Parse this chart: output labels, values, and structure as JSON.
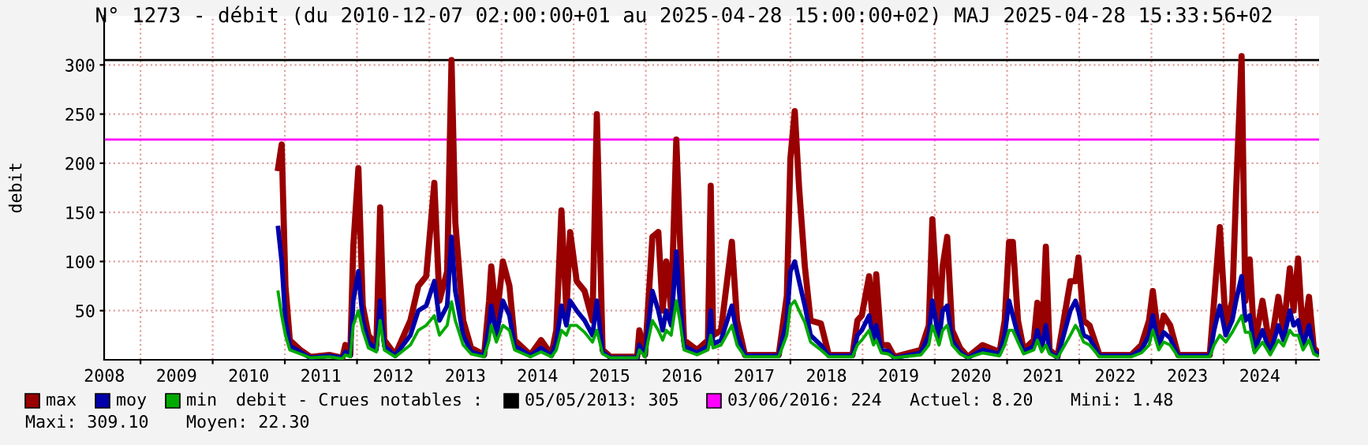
{
  "chart_data": {
    "type": "line",
    "title": "N° 1273 - débit (du 2010-12-07 02:00:00+01 au 2025-04-28 15:00:00+02) MAJ 2025-04-28 15:33:56+02",
    "ylabel": "debit",
    "x": [
      "2010-11-28",
      "2010-12-16",
      "2011-01-04",
      "2011-01-26",
      "2011-03-20",
      "2011-05-10",
      "2011-08-14",
      "2011-10-19",
      "2011-11-03",
      "2011-11-28",
      "2011-12-13",
      "2012-01-08",
      "2012-01-30",
      "2012-02-28",
      "2012-04-08",
      "2012-04-27",
      "2012-05-18",
      "2012-07-12",
      "2012-09-27",
      "2012-11-06",
      "2012-12-16",
      "2013-01-26",
      "2013-02-21",
      "2013-04-01",
      "2013-04-23",
      "2013-05-12",
      "2013-06-21",
      "2013-07-31",
      "2013-10-05",
      "2013-10-30",
      "2013-11-10",
      "2013-12-06",
      "2014-01-08",
      "2014-02-10",
      "2014-03-08",
      "2014-05-27",
      "2014-07-20",
      "2014-09-10",
      "2014-10-05",
      "2014-10-31",
      "2014-11-25",
      "2014-12-14",
      "2015-01-16",
      "2015-02-25",
      "2015-04-06",
      "2015-04-28",
      "2015-05-27",
      "2015-07-06",
      "2015-08-05",
      "2015-11-18",
      "2015-11-29",
      "2015-12-28",
      "2016-01-08",
      "2016-02-03",
      "2016-03-04",
      "2016-03-26",
      "2016-04-13",
      "2016-05-08",
      "2016-06-03",
      "2016-06-21",
      "2016-07-12",
      "2016-09-16",
      "2016-11-10",
      "2016-11-24",
      "2016-12-06",
      "2017-01-15",
      "2017-03-11",
      "2017-04-06",
      "2017-05-16",
      "2017-11-03",
      "2017-12-14",
      "2018-01-01",
      "2018-01-23",
      "2018-02-14",
      "2018-03-15",
      "2018-04-13",
      "2018-06-04",
      "2018-07-14",
      "2018-11-11",
      "2018-12-06",
      "2018-12-28",
      "2019-02-03",
      "2019-02-25",
      "2019-03-11",
      "2019-04-06",
      "2019-05-09",
      "2019-06-11",
      "2019-10-23",
      "2019-12-02",
      "2019-12-20",
      "2020-01-23",
      "2020-02-10",
      "2020-03-04",
      "2020-03-29",
      "2020-05-08",
      "2020-06-17",
      "2020-08-30",
      "2020-11-24",
      "2020-12-20",
      "2021-01-11",
      "2021-01-30",
      "2021-02-25",
      "2021-03-26",
      "2021-05-16",
      "2021-06-03",
      "2021-06-25",
      "2021-07-16",
      "2021-08-04",
      "2021-09-13",
      "2021-11-17",
      "2021-12-13",
      "2021-12-28",
      "2022-01-23",
      "2022-02-22",
      "2022-04-13",
      "2022-09-21",
      "2022-11-11",
      "2022-12-20",
      "2023-01-08",
      "2023-02-07",
      "2023-03-04",
      "2023-04-06",
      "2023-05-16",
      "2023-10-23",
      "2023-11-14",
      "2023-12-13",
      "2024-01-12",
      "2024-02-14",
      "2024-03-04",
      "2024-04-01",
      "2024-04-20",
      "2024-05-12",
      "2024-06-05",
      "2024-07-16",
      "2024-08-24",
      "2024-10-04",
      "2024-10-30",
      "2024-12-01",
      "2024-12-20",
      "2025-01-12",
      "2025-02-06",
      "2025-03-08",
      "2025-04-01",
      "2025-04-20"
    ],
    "series": [
      {
        "name": "max",
        "color": "#990000",
        "values": [
          195,
          219,
          75,
          20,
          10,
          3,
          5,
          2,
          15,
          5,
          115,
          195,
          55,
          25,
          15,
          155,
          20,
          5,
          40,
          75,
          85,
          180,
          60,
          90,
          305,
          140,
          40,
          12,
          5,
          60,
          95,
          40,
          100,
          75,
          20,
          5,
          20,
          5,
          30,
          152,
          50,
          130,
          80,
          70,
          40,
          250,
          10,
          3,
          3,
          3,
          30,
          5,
          40,
          125,
          130,
          50,
          100,
          50,
          224,
          125,
          20,
          10,
          20,
          177,
          25,
          30,
          120,
          40,
          5,
          5,
          65,
          205,
          253,
          175,
          95,
          40,
          37,
          5,
          5,
          40,
          45,
          85,
          30,
          87,
          15,
          15,
          3,
          10,
          35,
          143,
          30,
          95,
          125,
          30,
          12,
          3,
          15,
          8,
          40,
          120,
          120,
          40,
          10,
          20,
          58,
          15,
          115,
          10,
          3,
          80,
          80,
          104,
          40,
          35,
          5,
          5,
          15,
          40,
          70,
          20,
          45,
          35,
          5,
          5,
          60,
          135,
          35,
          60,
          170,
          309,
          60,
          102,
          15,
          60,
          10,
          64,
          30,
          93,
          50,
          103,
          20,
          64,
          12,
          8
        ]
      },
      {
        "name": "moy",
        "color": "#0000aa",
        "values": [
          134,
          100,
          40,
          14,
          8,
          2,
          4,
          2,
          8,
          4,
          60,
          90,
          40,
          18,
          10,
          60,
          14,
          4,
          25,
          50,
          55,
          80,
          40,
          55,
          125,
          70,
          25,
          8,
          4,
          35,
          55,
          25,
          60,
          45,
          14,
          4,
          12,
          4,
          18,
          55,
          35,
          60,
          50,
          40,
          25,
          60,
          8,
          2,
          2,
          2,
          15,
          4,
          25,
          70,
          50,
          30,
          50,
          35,
          110,
          60,
          14,
          7,
          14,
          50,
          16,
          20,
          55,
          25,
          4,
          4,
          40,
          90,
          100,
          80,
          55,
          25,
          15,
          4,
          4,
          25,
          30,
          45,
          20,
          35,
          10,
          9,
          2,
          7,
          25,
          60,
          20,
          50,
          55,
          20,
          8,
          2,
          10,
          6,
          25,
          60,
          45,
          25,
          8,
          14,
          30,
          11,
          35,
          8,
          2,
          50,
          60,
          50,
          25,
          22,
          4,
          4,
          10,
          25,
          45,
          14,
          28,
          22,
          4,
          4,
          30,
          55,
          25,
          40,
          60,
          85,
          40,
          45,
          10,
          30,
          7,
          35,
          20,
          50,
          35,
          40,
          14,
          35,
          9,
          6
        ]
      },
      {
        "name": "min",
        "color": "#00aa00",
        "values": [
          69,
          45,
          25,
          10,
          6,
          2,
          3,
          1,
          5,
          3,
          35,
          50,
          30,
          12,
          8,
          40,
          10,
          3,
          15,
          30,
          35,
          45,
          25,
          35,
          59,
          40,
          15,
          6,
          3,
          20,
          35,
          18,
          35,
          30,
          10,
          3,
          8,
          3,
          10,
          30,
          25,
          35,
          35,
          28,
          18,
          30,
          6,
          2,
          2,
          2,
          10,
          3,
          15,
          40,
          30,
          20,
          30,
          25,
          60,
          40,
          10,
          5,
          10,
          25,
          12,
          15,
          35,
          15,
          3,
          3,
          25,
          55,
          60,
          50,
          38,
          18,
          10,
          3,
          3,
          15,
          20,
          30,
          15,
          20,
          7,
          6,
          2,
          5,
          15,
          35,
          15,
          30,
          35,
          15,
          6,
          2,
          7,
          4,
          15,
          30,
          30,
          18,
          6,
          10,
          20,
          8,
          15,
          6,
          2,
          25,
          35,
          30,
          18,
          15,
          3,
          3,
          7,
          15,
          30,
          10,
          18,
          15,
          3,
          3,
          15,
          25,
          18,
          28,
          35,
          45,
          28,
          28,
          7,
          18,
          5,
          20,
          14,
          30,
          25,
          25,
          10,
          20,
          6,
          4
        ]
      }
    ],
    "xlim": [
      "2008-07-01",
      "2025-04-28"
    ],
    "xticks": [
      {
        "value": "2008-07-02",
        "label": "2008"
      },
      {
        "value": "2009-01-01",
        "label": null
      },
      {
        "value": "2009-07-02",
        "label": "2009"
      },
      {
        "value": "2010-01-01",
        "label": null
      },
      {
        "value": "2010-07-02",
        "label": "2010"
      },
      {
        "value": "2011-01-01",
        "label": null
      },
      {
        "value": "2011-07-02",
        "label": "2011"
      },
      {
        "value": "2012-01-01",
        "label": null
      },
      {
        "value": "2012-07-02",
        "label": "2012"
      },
      {
        "value": "2013-01-01",
        "label": null
      },
      {
        "value": "2013-07-02",
        "label": "2013"
      },
      {
        "value": "2014-01-01",
        "label": null
      },
      {
        "value": "2014-07-02",
        "label": "2014"
      },
      {
        "value": "2015-01-01",
        "label": null
      },
      {
        "value": "2015-07-02",
        "label": "2015"
      },
      {
        "value": "2016-01-01",
        "label": null
      },
      {
        "value": "2016-07-02",
        "label": "2016"
      },
      {
        "value": "2017-01-01",
        "label": null
      },
      {
        "value": "2017-07-02",
        "label": "2017"
      },
      {
        "value": "2018-01-01",
        "label": null
      },
      {
        "value": "2018-07-02",
        "label": "2018"
      },
      {
        "value": "2019-01-01",
        "label": null
      },
      {
        "value": "2019-07-02",
        "label": "2019"
      },
      {
        "value": "2020-01-01",
        "label": null
      },
      {
        "value": "2020-07-02",
        "label": "2020"
      },
      {
        "value": "2021-01-01",
        "label": null
      },
      {
        "value": "2021-07-02",
        "label": "2021"
      },
      {
        "value": "2022-01-01",
        "label": null
      },
      {
        "value": "2022-07-02",
        "label": "2022"
      },
      {
        "value": "2023-01-01",
        "label": null
      },
      {
        "value": "2023-07-02",
        "label": "2023"
      },
      {
        "value": "2024-01-01",
        "label": null
      },
      {
        "value": "2024-07-02",
        "label": "2024"
      },
      {
        "value": "2025-01-01",
        "label": null
      }
    ],
    "ylim": [
      0,
      350
    ],
    "yticks": [
      50,
      100,
      150,
      200,
      250,
      300
    ],
    "ref_lines": [
      {
        "axis": "y",
        "value": 305,
        "label": "05/05/2013: 305",
        "color": "#000000"
      },
      {
        "axis": "y",
        "value": 224,
        "label": "03/06/2016: 224",
        "color": "#ff00ff"
      }
    ],
    "annotations": [
      "debit - Crues notables :",
      "Actuel: 8.20",
      "Mini: 1.48",
      "Maxi: 309.10",
      "Moyen: 22.30"
    ],
    "grid": true,
    "legend": "bottom",
    "marker": "none",
    "line_style": "solid"
  }
}
